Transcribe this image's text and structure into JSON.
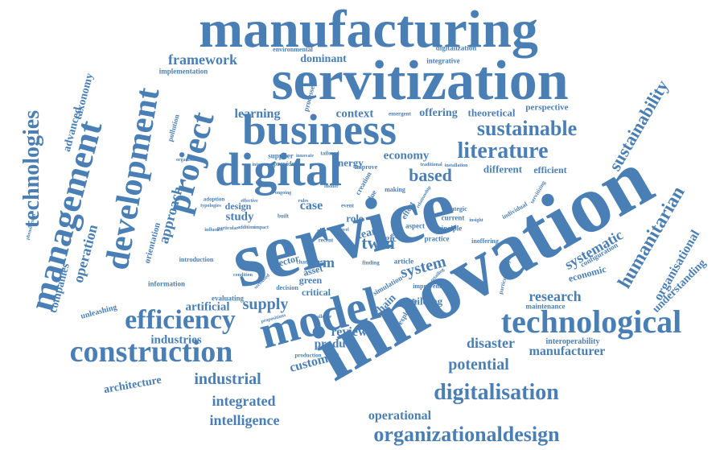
{
  "word_cloud": {
    "color": "#4a7fb5",
    "words": [
      {
        "text": "manufacturing"
      },
      {
        "text": "servitization"
      },
      {
        "text": "business"
      },
      {
        "text": "digital"
      },
      {
        "text": "service"
      },
      {
        "text": "innovation"
      },
      {
        "text": "model"
      },
      {
        "text": "technological"
      },
      {
        "text": "construction"
      },
      {
        "text": "efficiency"
      },
      {
        "text": "management"
      },
      {
        "text": "development"
      },
      {
        "text": "project"
      },
      {
        "text": "technologies"
      },
      {
        "text": "sustainable"
      },
      {
        "text": "sustainability"
      },
      {
        "text": "humanitarian"
      },
      {
        "text": "literature"
      },
      {
        "text": "digitalisation"
      },
      {
        "text": "organizationaldesign"
      },
      {
        "text": "framework"
      },
      {
        "text": "dominant"
      },
      {
        "text": "learning"
      },
      {
        "text": "context"
      },
      {
        "text": "offering"
      },
      {
        "text": "theoretical"
      },
      {
        "text": "perspective"
      },
      {
        "text": "economy"
      },
      {
        "text": "based"
      },
      {
        "text": "different"
      },
      {
        "text": "efficient"
      },
      {
        "text": "energy"
      },
      {
        "text": "approach"
      },
      {
        "text": "operation"
      },
      {
        "text": "advanced"
      },
      {
        "text": "taxonomy"
      },
      {
        "text": "companies"
      },
      {
        "text": "systematic"
      },
      {
        "text": "economic"
      },
      {
        "text": "organisational"
      },
      {
        "text": "understanding"
      },
      {
        "text": "research"
      },
      {
        "text": "system"
      },
      {
        "text": "twin"
      },
      {
        "text": "supply"
      },
      {
        "text": "artificial"
      },
      {
        "text": "industries"
      },
      {
        "text": "review"
      },
      {
        "text": "product"
      },
      {
        "text": "customer"
      },
      {
        "text": "industrial"
      },
      {
        "text": "integrated"
      },
      {
        "text": "intelligence"
      },
      {
        "text": "operational"
      },
      {
        "text": "potential"
      },
      {
        "text": "disaster"
      },
      {
        "text": "manufacturer"
      },
      {
        "text": "architecture"
      },
      {
        "text": "firm"
      },
      {
        "text": "case"
      },
      {
        "text": "study"
      },
      {
        "text": "design"
      },
      {
        "text": "chain"
      },
      {
        "text": "building"
      },
      {
        "text": "green"
      },
      {
        "text": "asset"
      },
      {
        "text": "sector"
      },
      {
        "text": "critical"
      },
      {
        "text": "role"
      },
      {
        "text": "team"
      },
      {
        "text": "logic"
      },
      {
        "text": "orientation"
      },
      {
        "text": "information"
      },
      {
        "text": "unleashing"
      },
      {
        "text": "evaluating"
      },
      {
        "text": "interoperability"
      },
      {
        "text": "maintenance"
      },
      {
        "text": "implementation"
      },
      {
        "text": "environmental"
      },
      {
        "text": "digitalization"
      },
      {
        "text": "integrative"
      },
      {
        "text": "processes"
      },
      {
        "text": "pollution"
      },
      {
        "text": "supplier"
      },
      {
        "text": "provide"
      },
      {
        "text": "tailored"
      },
      {
        "text": "improve"
      },
      {
        "text": "creation"
      },
      {
        "text": "value"
      },
      {
        "text": "making"
      },
      {
        "text": "effect"
      },
      {
        "text": "strategic"
      },
      {
        "text": "current"
      },
      {
        "text": "principle"
      },
      {
        "text": "practice"
      },
      {
        "text": "aspect"
      },
      {
        "text": "article"
      },
      {
        "text": "individual"
      },
      {
        "text": "inoffering"
      },
      {
        "text": "configuration"
      },
      {
        "text": "simulation"
      },
      {
        "text": "exploring"
      },
      {
        "text": "improvement"
      },
      {
        "text": "decision"
      },
      {
        "text": "change"
      },
      {
        "text": "introduction"
      },
      {
        "text": "production"
      },
      {
        "text": "challenge"
      },
      {
        "text": "adoption"
      },
      {
        "text": "typologies"
      },
      {
        "text": "built"
      },
      {
        "text": "site"
      },
      {
        "text": "recent"
      },
      {
        "text": "event"
      },
      {
        "text": "finding"
      },
      {
        "text": "emergent"
      },
      {
        "text": "insight"
      },
      {
        "text": "particularities"
      },
      {
        "text": "servitizing"
      },
      {
        "text": "phenomenon"
      },
      {
        "text": "organisation"
      },
      {
        "text": "ongoing"
      },
      {
        "text": "addition"
      },
      {
        "text": "condition"
      },
      {
        "text": "particular"
      },
      {
        "text": "influence"
      },
      {
        "text": "traditional"
      },
      {
        "text": "installation"
      },
      {
        "text": "innovate"
      },
      {
        "text": "integrate"
      },
      {
        "text": "effective"
      },
      {
        "text": "relationship"
      },
      {
        "text": "servitised"
      },
      {
        "text": "retailing"
      },
      {
        "text": "physical"
      },
      {
        "text": "insider"
      },
      {
        "text": "propositions"
      },
      {
        "text": "level"
      },
      {
        "text": "impact"
      },
      {
        "text": "rules"
      }
    ]
  }
}
